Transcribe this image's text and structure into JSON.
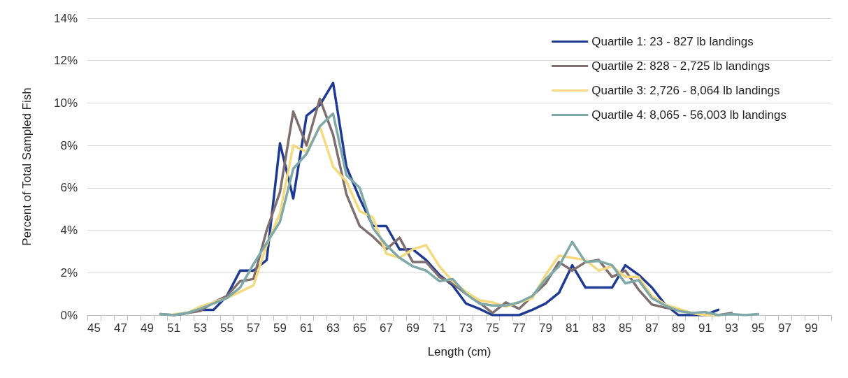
{
  "chart_data": {
    "type": "line",
    "xlabel": "Length (cm)",
    "ylabel": "Percent of Total Sampled Fish",
    "categories": [
      "45",
      null,
      "47",
      null,
      "49",
      null,
      "51",
      null,
      "53",
      null,
      "55",
      null,
      "57",
      null,
      "59",
      null,
      "61",
      null,
      "63",
      null,
      "65",
      null,
      "67",
      null,
      "69",
      null,
      "71",
      null,
      "73",
      null,
      "75",
      null,
      "77",
      null,
      "79",
      null,
      "81",
      null,
      "83",
      null,
      "85",
      null,
      "87",
      null,
      "89",
      null,
      "91",
      null,
      "93",
      null,
      "95",
      null,
      "97",
      null,
      "99",
      null
    ],
    "series": [
      {
        "name": "Quartile 1: 23 - 827 lb landings",
        "color": "#1f3a93",
        "values": [
          null,
          null,
          null,
          null,
          null,
          null,
          0,
          0.1,
          0.25,
          0.25,
          0.9,
          2.1,
          2.1,
          2.6,
          8.1,
          5.5,
          9.4,
          9.9,
          10.95,
          7.0,
          5.5,
          4.2,
          4.2,
          3.1,
          3.1,
          2.6,
          1.9,
          1.4,
          0.55,
          0.3,
          0,
          0,
          0,
          0.25,
          0.55,
          1.05,
          2.35,
          1.3,
          1.3,
          1.3,
          2.35,
          1.9,
          1.3,
          0.5,
          0,
          0,
          0,
          0.25,
          null,
          null,
          null,
          null,
          null,
          null,
          null,
          null
        ]
      },
      {
        "name": "Quartile 2: 828 - 2,725 lb landings",
        "color": "#7f6f6e",
        "values": [
          null,
          null,
          null,
          null,
          null,
          0.05,
          0,
          0.1,
          0.2,
          0.6,
          0.9,
          1.6,
          1.7,
          4.0,
          5.8,
          9.6,
          8.0,
          10.2,
          8.5,
          5.7,
          4.2,
          3.7,
          3.1,
          3.65,
          2.5,
          2.5,
          1.8,
          1.5,
          1.0,
          0.6,
          0.1,
          0.6,
          0.3,
          0.9,
          1.5,
          2.5,
          2.1,
          2.5,
          2.6,
          1.8,
          2.1,
          1.2,
          0.5,
          0.35,
          0.25,
          0.1,
          0,
          0,
          0.1,
          null,
          null,
          null,
          null,
          null,
          null,
          null
        ]
      },
      {
        "name": "Quartile 3: 2,726 - 8,064 lb landings",
        "color": "#f5d97e",
        "values": [
          null,
          null,
          null,
          null,
          null,
          null,
          0.05,
          0.1,
          0.4,
          0.6,
          0.8,
          1.1,
          1.4,
          3.3,
          4.8,
          8.0,
          7.7,
          8.9,
          7.0,
          6.3,
          4.9,
          4.6,
          2.9,
          2.7,
          3.1,
          3.3,
          2.3,
          1.6,
          1.1,
          0.7,
          0.6,
          0.4,
          0.6,
          0.8,
          1.9,
          2.8,
          2.7,
          2.6,
          2.1,
          2.3,
          1.8,
          1.8,
          0.9,
          0.5,
          0.3,
          0.1,
          0,
          0,
          null,
          null,
          null,
          null,
          null,
          null,
          null,
          null
        ]
      },
      {
        "name": "Quartile 4: 8,065 - 56,003 lb landings",
        "color": "#7fa9a9",
        "values": [
          null,
          null,
          null,
          null,
          null,
          0.05,
          0,
          0.1,
          0.3,
          0.55,
          0.8,
          1.3,
          2.4,
          3.4,
          4.4,
          6.9,
          7.6,
          8.9,
          9.5,
          6.6,
          6.0,
          4.1,
          3.3,
          2.7,
          2.3,
          2.1,
          1.6,
          1.7,
          1.0,
          0.55,
          0.45,
          0.45,
          0.6,
          0.9,
          1.7,
          2.3,
          3.45,
          2.5,
          2.55,
          2.35,
          1.5,
          1.65,
          0.8,
          0.45,
          0.2,
          0.1,
          0.15,
          0,
          0.05,
          0,
          0.05,
          null,
          null,
          null,
          null,
          null
        ]
      }
    ],
    "ylim": [
      0,
      14
    ],
    "yticks": [
      {
        "value": 0,
        "label": "0%"
      },
      {
        "value": 2,
        "label": "2%"
      },
      {
        "value": 4,
        "label": "4%"
      },
      {
        "value": 6,
        "label": "6%"
      },
      {
        "value": 8,
        "label": "8%"
      },
      {
        "value": 10,
        "label": "10%"
      },
      {
        "value": 12,
        "label": "12%"
      },
      {
        "value": 14,
        "label": "14%"
      }
    ],
    "grid": "y",
    "legend": "top right",
    "marker": "none",
    "line_style": "solid"
  }
}
